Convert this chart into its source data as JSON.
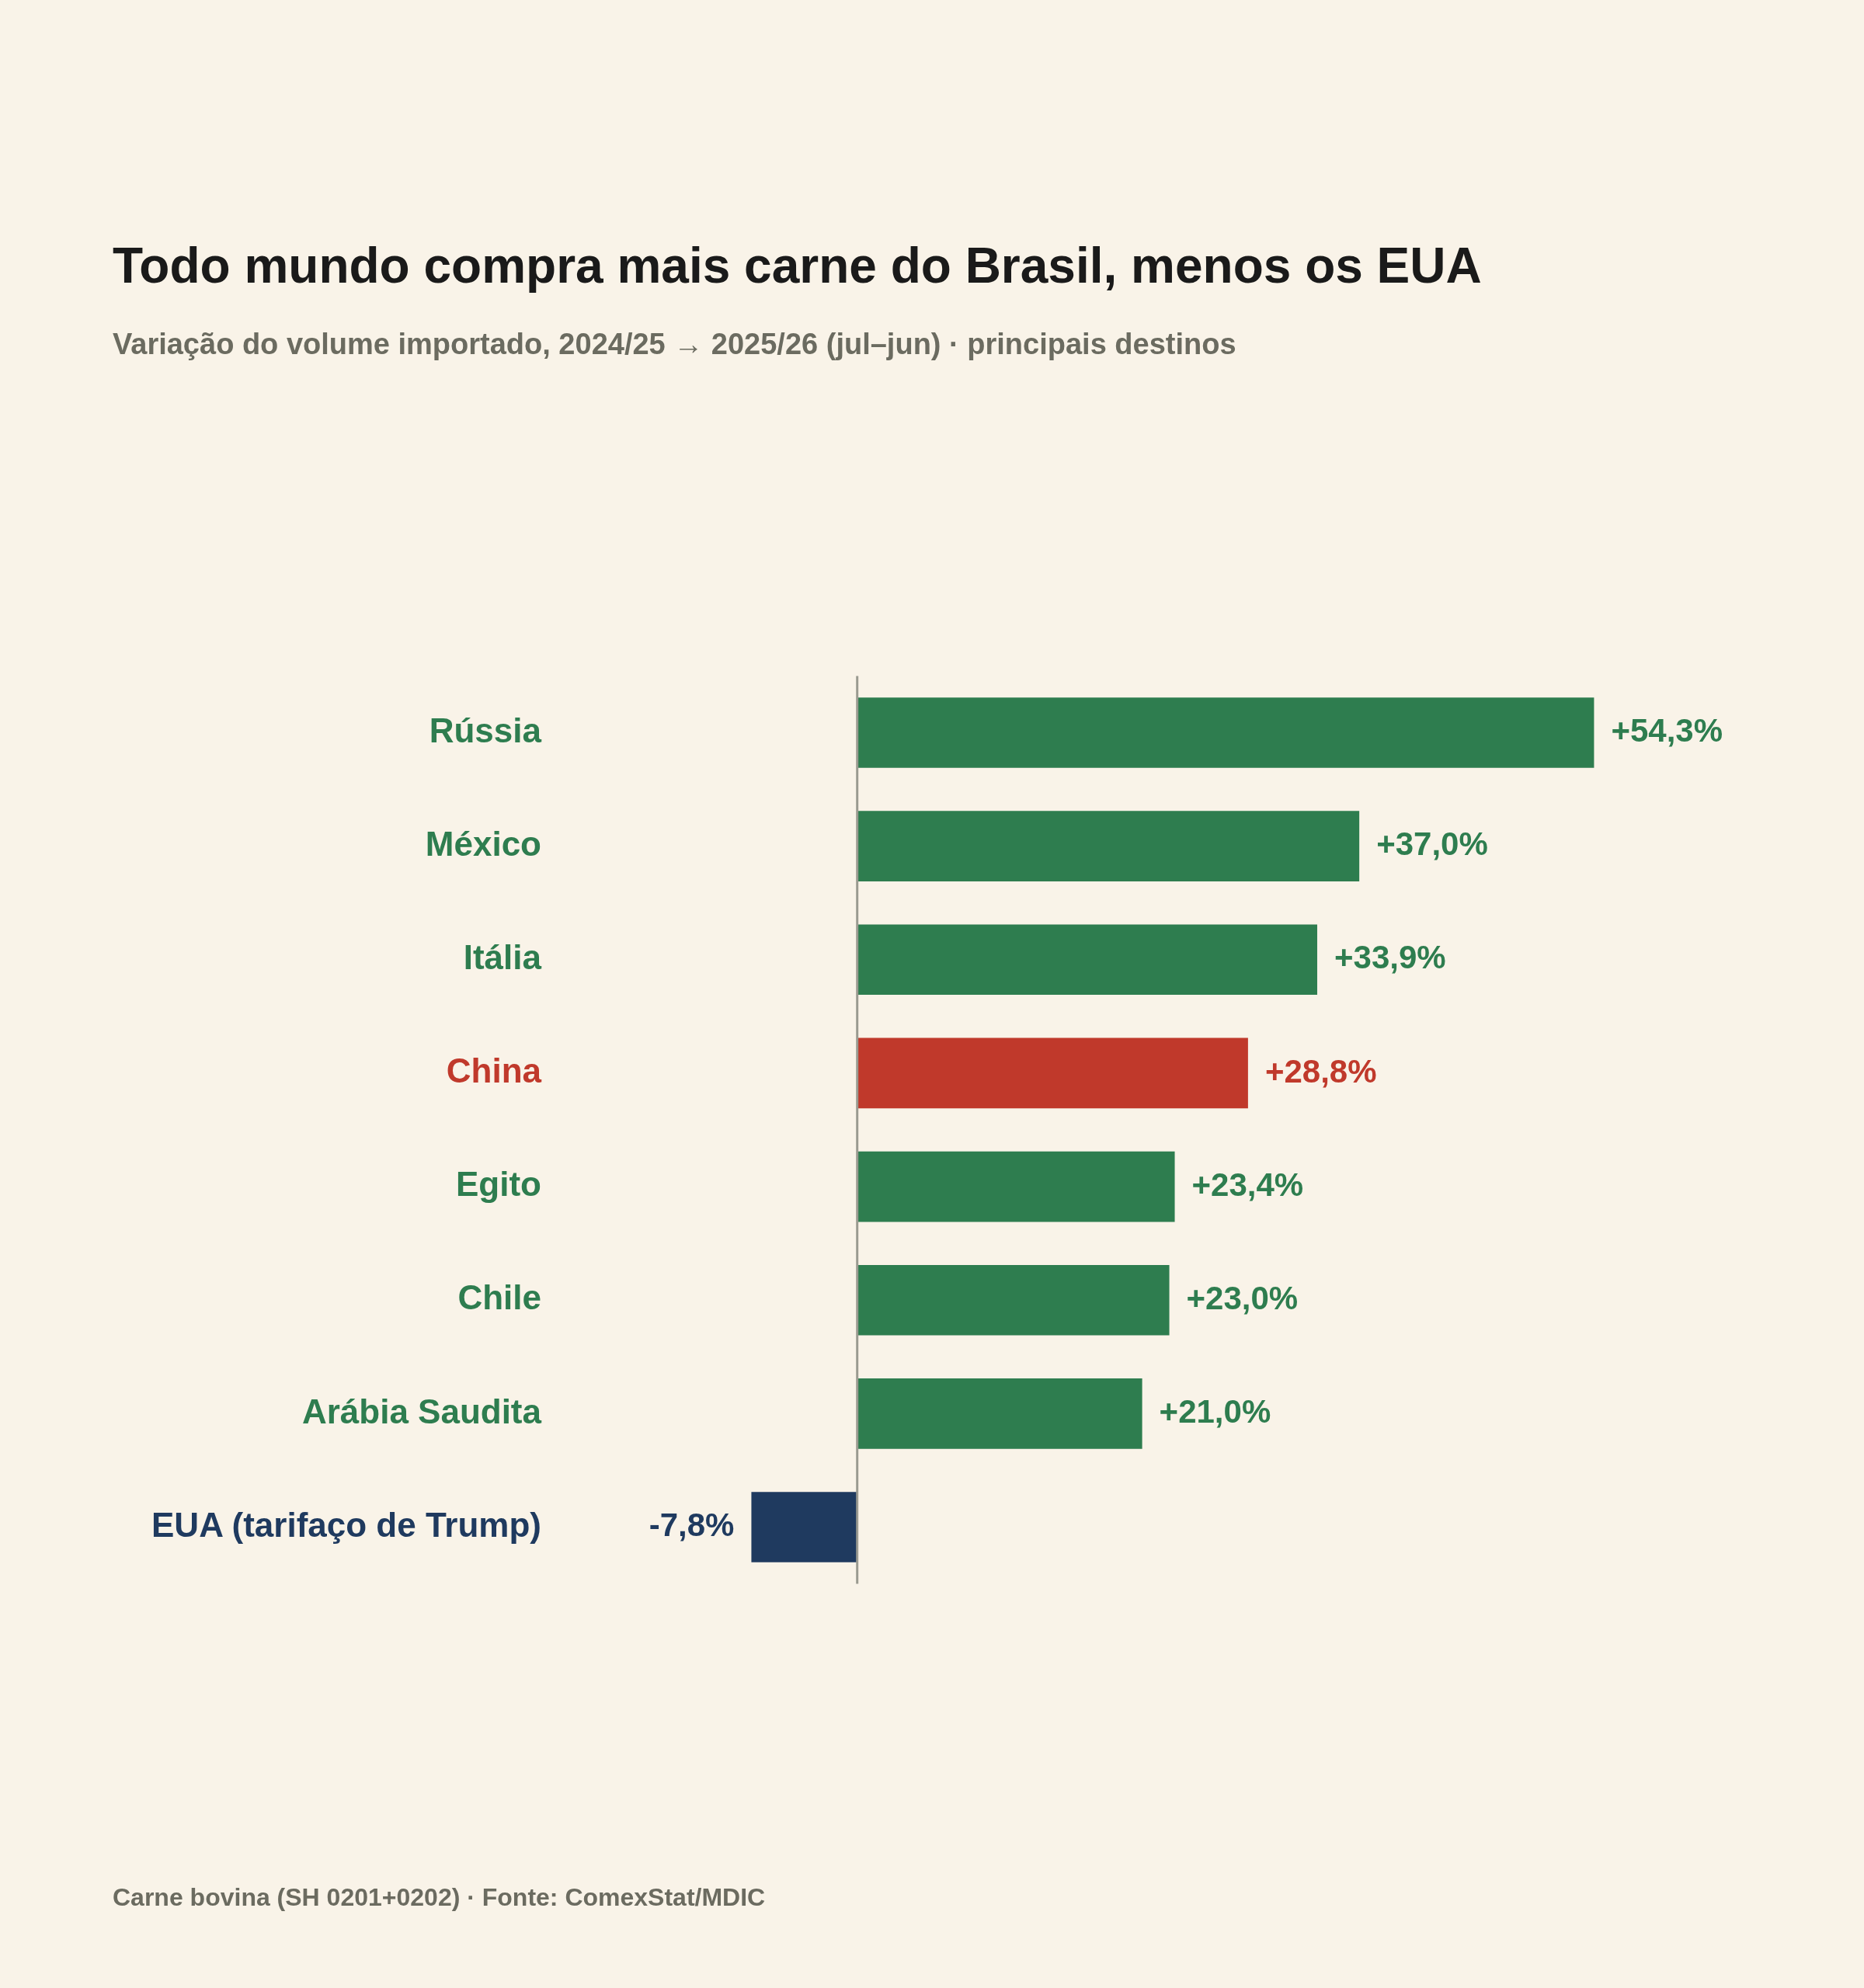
{
  "chart_data": {
    "type": "bar",
    "orientation": "horizontal",
    "title": "Todo mundo compra mais carne do Brasil, menos os EUA",
    "subtitle": "Variação do volume importado, 2024/25 → 2025/26 (jul–jun) · principais destinos",
    "categories": [
      "Rússia",
      "México",
      "Itália",
      "China",
      "Egito",
      "Chile",
      "Arábia Saudita",
      "EUA (tarifaço de Trump)"
    ],
    "values": [
      54.3,
      37.0,
      33.9,
      28.8,
      23.4,
      23.0,
      21.0,
      -7.8
    ],
    "colors": [
      "#2e7d4f",
      "#2e7d4f",
      "#2e7d4f",
      "#c0392b",
      "#2e7d4f",
      "#2e7d4f",
      "#2e7d4f",
      "#1f3a5f"
    ],
    "value_labels": [
      "+54,3%",
      "+37,0%",
      "+33,9%",
      "+28,8%",
      "+23,4%",
      "+23,0%",
      "+21,0%",
      "-7,8%"
    ],
    "ref_lines": [
      {
        "axis": "x",
        "value": 0,
        "color": "#9a9a90"
      }
    ],
    "annotations": [
      "Carne bovina (SH 0201+0202) · Fonte: ComexStat/MDIC"
    ],
    "legend": false,
    "tick_labels": "y"
  }
}
